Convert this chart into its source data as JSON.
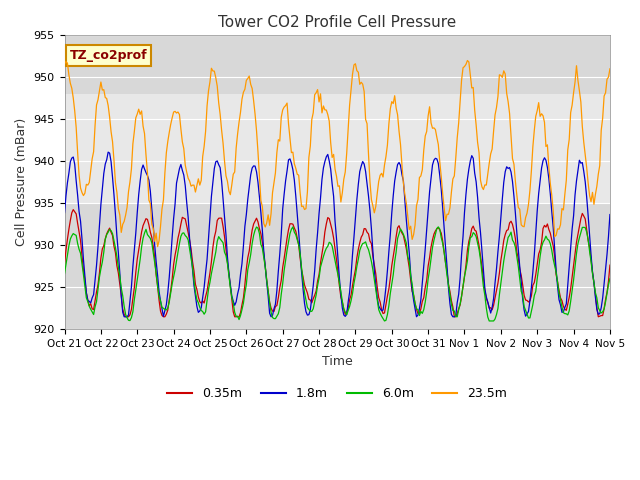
{
  "title": "Tower CO2 Profile Cell Pressure",
  "xlabel": "Time",
  "ylabel": "Cell Pressure (mBar)",
  "ylim": [
    920,
    955
  ],
  "xlim": [
    0,
    375
  ],
  "background_color": "#ffffff",
  "plot_bg_color": "#d8d8d8",
  "band_color": "#e8e8e8",
  "band_ymin": 935,
  "band_ymax": 948,
  "grid_color": "#ffffff",
  "legend_label": "TZ_co2prof",
  "legend_bg": "#ffffcc",
  "legend_border": "#cc8800",
  "series_labels": [
    "0.35m",
    "1.8m",
    "6.0m",
    "23.5m"
  ],
  "series_colors": [
    "#cc0000",
    "#0000cc",
    "#00bb00",
    "#ff9900"
  ],
  "tick_labels": [
    "Oct 21",
    "Oct 22",
    "Oct 23",
    "Oct 24",
    "Oct 25",
    "Oct 26",
    "Oct 27",
    "Oct 28",
    "Oct 29",
    "Oct 30",
    "Oct 31",
    "Nov 1",
    "Nov 2",
    "Nov 3",
    "Nov 4",
    "Nov 5"
  ],
  "tick_positions": [
    0,
    25,
    50,
    75,
    100,
    125,
    150,
    175,
    200,
    225,
    250,
    275,
    300,
    325,
    350,
    375
  ],
  "n_points": 376
}
